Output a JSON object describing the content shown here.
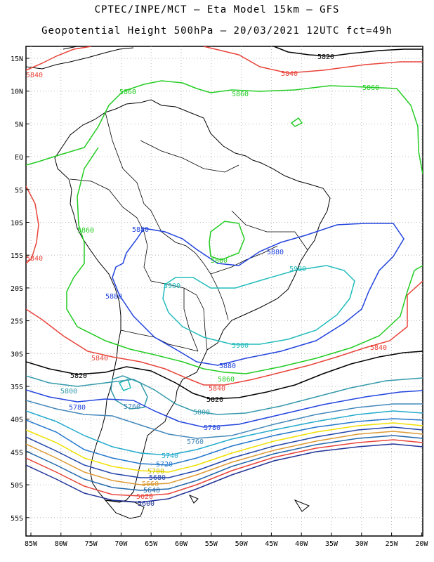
{
  "header": {
    "line1": "CPTEC/INPE/MCT –  Eta Model 15km – GFS",
    "line2": "Geopotential Height 500hPa – 20/03/2021 12UTC fct=49h"
  },
  "map": {
    "lat_labels": [
      "15N",
      "10N",
      "5N",
      "EQ",
      "5S",
      "10S",
      "15S",
      "20S",
      "25S",
      "30S",
      "35S",
      "40S",
      "45S",
      "50S",
      "55S"
    ],
    "lon_labels": [
      "85W",
      "80W",
      "75W",
      "70W",
      "65W",
      "60W",
      "55W",
      "50W",
      "45W",
      "40W",
      "35W",
      "30W",
      "25W",
      "20W"
    ]
  },
  "contours": [
    {
      "label": "5820",
      "color": "#000000"
    },
    {
      "label": "5840",
      "color": "#e8443a"
    },
    {
      "label": "5860",
      "color": "#22cc22"
    },
    {
      "label": "5880",
      "color": "#2244dd"
    },
    {
      "label": "5900",
      "color": "#22bbbb"
    },
    {
      "label": "5800",
      "color": "#3399aa"
    },
    {
      "label": "5780",
      "color": "#2244dd"
    },
    {
      "label": "5760",
      "color": "#4488bb"
    },
    {
      "label": "5740",
      "color": "#22aacc"
    },
    {
      "label": "5720",
      "color": "#2277cc"
    },
    {
      "label": "5700",
      "color": "#f0e000"
    },
    {
      "label": "5680",
      "color": "#2244aa"
    },
    {
      "label": "5660",
      "color": "#dd9933"
    },
    {
      "label": "5640",
      "color": "#2266aa"
    },
    {
      "label": "5620",
      "color": "#e8443a"
    },
    {
      "label": "5600",
      "color": "#223399"
    }
  ]
}
